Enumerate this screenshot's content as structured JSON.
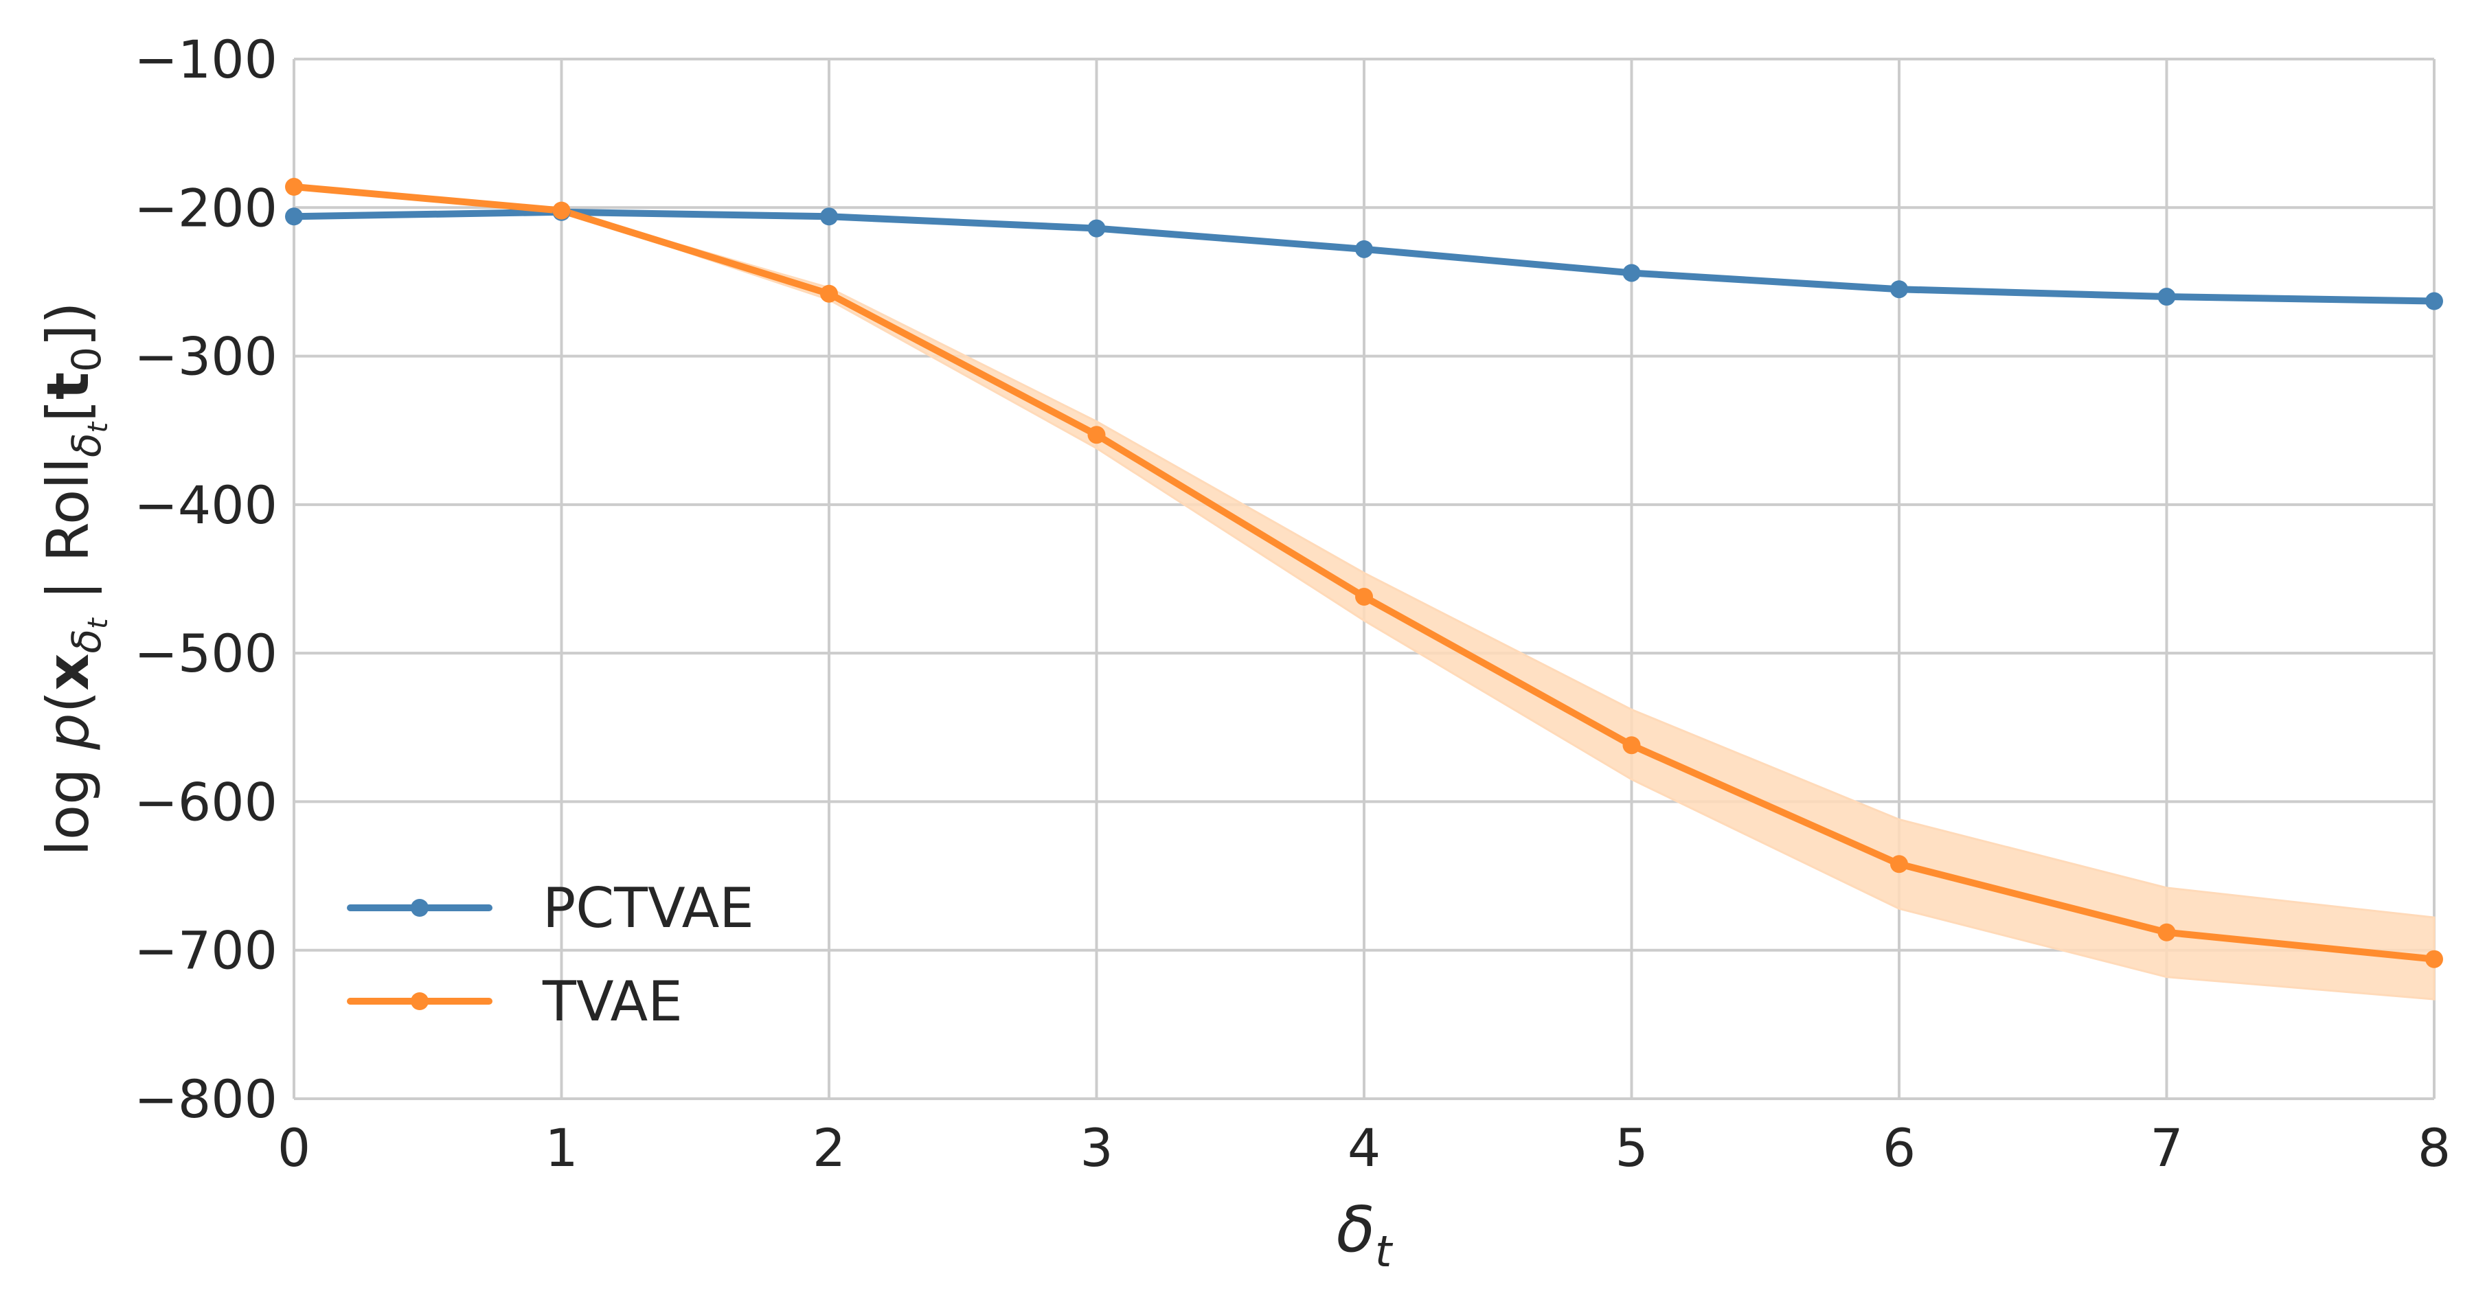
{
  "chart_data": {
    "type": "line",
    "title": "",
    "x": [
      0,
      1,
      2,
      3,
      4,
      5,
      6,
      7,
      8
    ],
    "xlim": [
      0,
      8
    ],
    "ylim": [
      -800,
      -100
    ],
    "xticks": [
      "0",
      "1",
      "2",
      "3",
      "4",
      "5",
      "6",
      "7",
      "8"
    ],
    "yticks": [
      -100,
      -200,
      -300,
      -400,
      -500,
      -600,
      -700,
      -800
    ],
    "ytick_labels": [
      "−100",
      "−200",
      "−300",
      "−400",
      "−500",
      "−600",
      "−700",
      "−800"
    ],
    "xlabel": "δt",
    "xlabel_parts": {
      "base": "δ",
      "sub": "t"
    },
    "ylabel": "log p(xδt | Rollδt[t0])",
    "ylabel_parts": {
      "prefix": "log ",
      "p": "p",
      "open": "(",
      "x": "x",
      "x_sub": "δ",
      "x_sub_sub": "t",
      "bar": " | Roll",
      "roll_sub": "δ",
      "roll_sub_sub": "t",
      "bracket_open": "[",
      "t": "t",
      "t_sub": "0",
      "close": "])"
    },
    "grid": true,
    "legend_position": "lower-left",
    "series": [
      {
        "name": "PCTVAE",
        "color": "#4682b4",
        "values": [
          -206,
          -203,
          -206,
          -214,
          -228,
          -244,
          -255,
          -260,
          -263
        ],
        "band_lower": [
          -206,
          -203,
          -206,
          -214,
          -228,
          -244,
          -255,
          -260,
          -263
        ],
        "band_upper": [
          -206,
          -203,
          -206,
          -214,
          -228,
          -244,
          -255,
          -260,
          -263
        ]
      },
      {
        "name": "TVAE",
        "color": "#ff8c2e",
        "band_color": "#ffdab9",
        "values": [
          -186,
          -202,
          -258,
          -353,
          -462,
          -562,
          -642,
          -688,
          -706
        ],
        "band_lower": [
          -186,
          -202,
          -262,
          -362,
          -478,
          -585,
          -672,
          -718,
          -733
        ],
        "band_upper": [
          -186,
          -202,
          -254,
          -344,
          -446,
          -538,
          -612,
          -658,
          -678
        ]
      }
    ]
  }
}
